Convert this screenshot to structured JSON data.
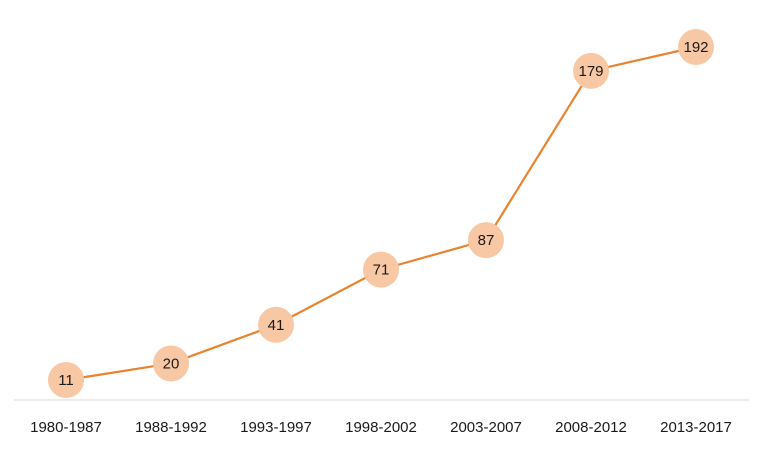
{
  "chart_data": {
    "type": "line",
    "title": "",
    "xlabel": "",
    "ylabel": "",
    "categories": [
      "1980-1987",
      "1988-1992",
      "1993-1997",
      "1998-2002",
      "2003-2007",
      "2008-2012",
      "2013-2017"
    ],
    "series": [
      {
        "values": [
          11,
          20,
          41,
          71,
          87,
          179,
          192
        ]
      }
    ],
    "ylim": [
      0,
      200
    ],
    "grid": false,
    "legend": "none",
    "data_labels": true,
    "colors": {
      "line": "#e8832e",
      "marker": "#f8c8a4",
      "axis": "#d9d9d9"
    }
  }
}
